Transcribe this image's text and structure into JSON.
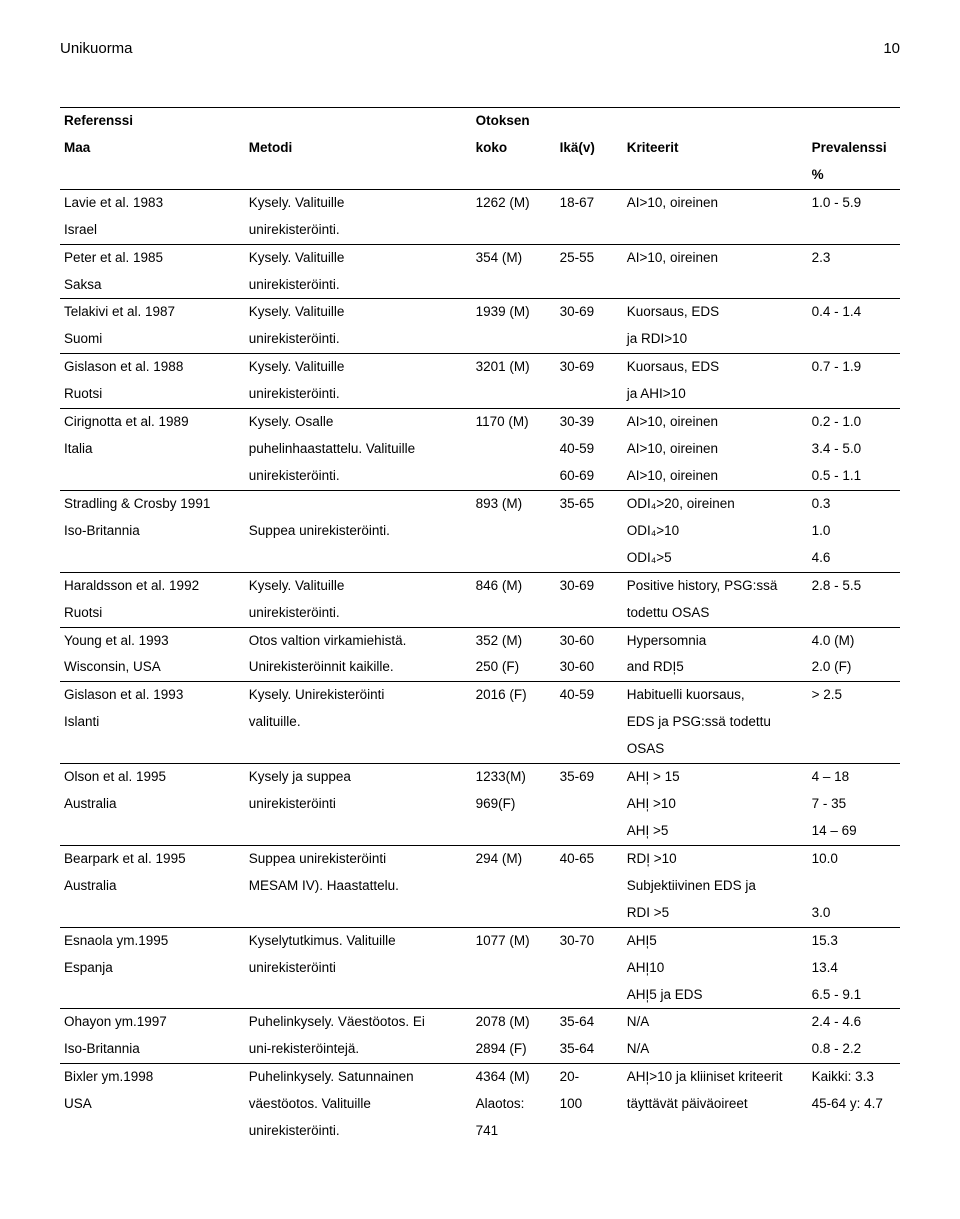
{
  "header": {
    "title": "Unikuorma",
    "page": "10"
  },
  "columns": {
    "c0a": "Referenssi",
    "c0b": "Maa",
    "c1a": "",
    "c1b": "Metodi",
    "c2a": "Otoksen",
    "c2b": "koko",
    "c3a": "",
    "c3b": "Ikä(v)",
    "c4a": "",
    "c4b": "Kriteerit",
    "c5a": "",
    "c5b": "Prevalenssi",
    "c5c": "%"
  },
  "rows": [
    [
      [
        "Lavie et al. 1983",
        "Kysely. Valituille",
        "1262 (M)",
        "18-67",
        "AI>10, oireinen",
        "1.0 - 5.9"
      ],
      [
        "Israel",
        "unirekisteröinti.",
        "",
        "",
        "",
        ""
      ]
    ],
    [
      [
        "Peter et al. 1985",
        "Kysely. Valituille",
        "354 (M)",
        "25-55",
        "AI>10, oireinen",
        "2.3"
      ],
      [
        "Saksa",
        "unirekisteröinti.",
        "",
        "",
        "",
        ""
      ]
    ],
    [
      [
        "Telakivi et al. 1987",
        "Kysely. Valituille",
        "1939 (M)",
        "30-69",
        "Kuorsaus, EDS",
        "0.4 - 1.4"
      ],
      [
        "Suomi",
        "unirekisteröinti.",
        "",
        "",
        "ja RDI>10",
        ""
      ]
    ],
    [
      [
        "Gislason et al. 1988",
        "Kysely. Valituille",
        "3201 (M)",
        "30-69",
        "Kuorsaus, EDS",
        "0.7 - 1.9"
      ],
      [
        "Ruotsi",
        "unirekisteröinti.",
        "",
        "",
        "ja AHI>10",
        ""
      ]
    ],
    [
      [
        "Cirignotta et al. 1989",
        "Kysely. Osalle",
        "1170 (M)",
        "30-39",
        "AI>10, oireinen",
        "0.2 - 1.0"
      ],
      [
        "Italia",
        "puhelinhaastattelu. Valituille",
        "",
        "40-59",
        "AI>10, oireinen",
        "3.4 - 5.0"
      ],
      [
        "",
        "unirekisteröinti.",
        "",
        "60-69",
        "AI>10, oireinen",
        "0.5 - 1.1"
      ]
    ],
    [
      [
        "Stradling & Crosby 1991",
        "",
        "893 (M)",
        "35-65",
        "ODI₄>20, oireinen",
        "0.3"
      ],
      [
        "Iso-Britannia",
        "Suppea unirekisteröinti.",
        "",
        "",
        "ODI₄>10",
        "1.0"
      ],
      [
        "",
        "",
        "",
        "",
        "ODI₄>5",
        "4.6"
      ]
    ],
    [
      [
        "Haraldsson et al. 1992",
        "Kysely. Valituille",
        "846 (M)",
        "30-69",
        "Positive history, PSG:ssä",
        "2.8 - 5.5"
      ],
      [
        "Ruotsi",
        "unirekisteröinti.",
        "",
        "",
        "todettu OSAS",
        ""
      ]
    ],
    [
      [
        "Young et al. 1993",
        "Otos valtion virkamiehistä.",
        "352 (M)",
        "30-60",
        "Hypersomnia",
        "4.0 (M)"
      ],
      [
        "Wisconsin, USA",
        "Unirekisteröinnit kaikille.",
        "250 (F)",
        "30-60",
        "and RDI̩5",
        "2.0 (F)"
      ]
    ],
    [
      [
        "Gislason et al. 1993",
        "Kysely. Unirekisteröinti",
        "2016 (F)",
        "40-59",
        "Habituelli kuorsaus,",
        "> 2.5"
      ],
      [
        "Islanti",
        "valituille.",
        "",
        "",
        "EDS ja PSG:ssä todettu",
        ""
      ],
      [
        "",
        "",
        "",
        "",
        "OSAS",
        ""
      ]
    ],
    [
      [
        "Olson et al. 1995",
        "Kysely ja suppea",
        "1233(M)",
        "35-69",
        "AHI̩ > 15",
        "4 – 18"
      ],
      [
        "Australia",
        "unirekisteröinti",
        "969(F)",
        "",
        "AHI̩ >10",
        "7 - 35"
      ],
      [
        "",
        "",
        "",
        "",
        "AHI̩ >5",
        "14 – 69"
      ]
    ],
    [
      [
        "Bearpark et al. 1995",
        "Suppea unirekisteröinti",
        "294 (M)",
        "40-65",
        "RDI̩ >10",
        "10.0"
      ],
      [
        "Australia",
        "MESAM IV). Haastattelu.",
        "",
        "",
        "Subjektiivinen EDS ja",
        ""
      ],
      [
        "",
        "",
        "",
        "",
        "RDI >5",
        "3.0"
      ]
    ],
    [
      [
        "Esnaola ym.1995",
        "Kyselytutkimus. Valituille",
        "1077 (M)",
        "30-70",
        "AHI̩5",
        "15.3"
      ],
      [
        "Espanja",
        "unirekisteröinti",
        "",
        "",
        "AHI̩10",
        "13.4"
      ],
      [
        "",
        "",
        "",
        "",
        "AHI̩5 ja EDS",
        "6.5 - 9.1"
      ]
    ],
    [
      [
        "Ohayon ym.1997",
        "Puhelinkysely. Väestöotos. Ei",
        "2078 (M)",
        "35-64",
        "N/A",
        "2.4 - 4.6"
      ],
      [
        "Iso-Britannia",
        "uni-rekisteröintejä.",
        "2894 (F)",
        "35-64",
        "N/A",
        "0.8 - 2.2"
      ]
    ],
    [
      [
        "Bixler ym.1998",
        "Puhelinkysely. Satunnainen",
        "4364 (M)",
        "20-",
        "AHI̩>10 ja kliiniset kriteerit",
        "Kaikki: 3.3"
      ],
      [
        "USA",
        "väestöotos. Valituille",
        "Alaotos:",
        "100",
        "täyttävät päiväoireet",
        "45-64 y: 4.7"
      ],
      [
        "",
        "unirekisteröinti.",
        "741",
        "",
        "",
        ""
      ]
    ]
  ]
}
